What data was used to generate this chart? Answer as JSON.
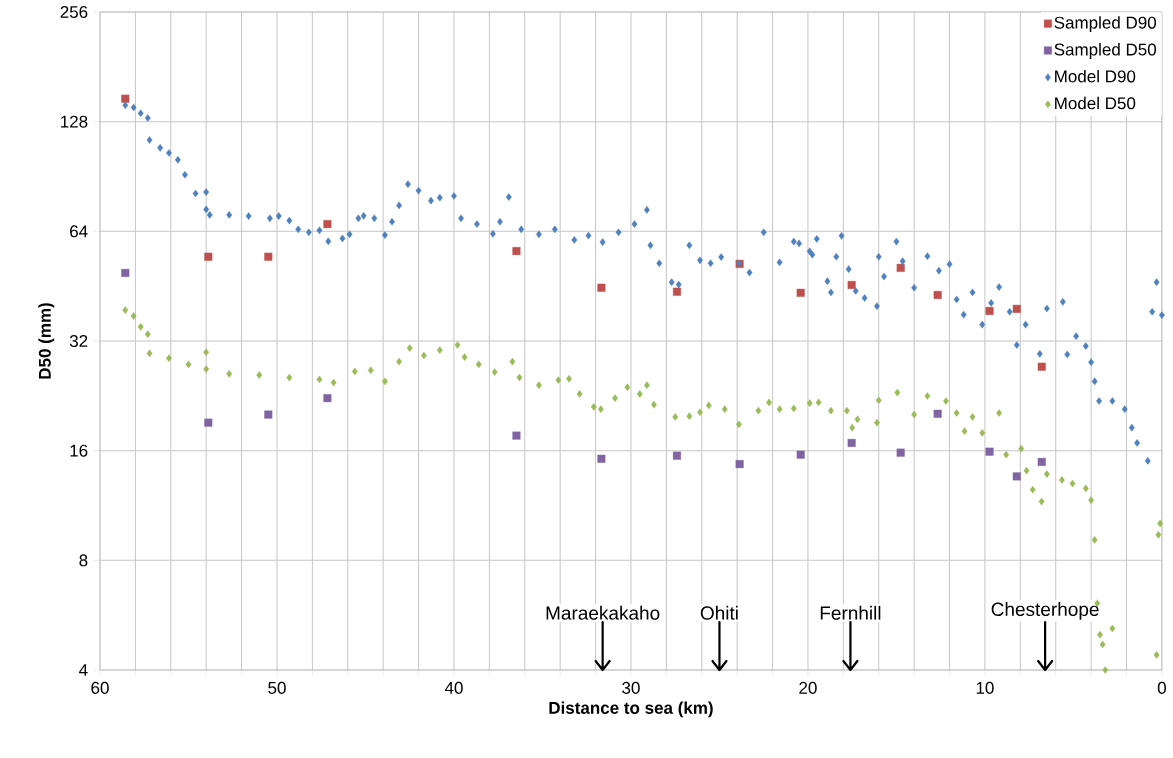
{
  "chart_data": {
    "type": "scatter",
    "xlabel": "Distance to sea (km)",
    "ylabel": "D50 (mm)",
    "log": "y",
    "grid": true,
    "legend": "top right",
    "xlim": [
      60,
      0
    ],
    "ylim": [
      4,
      256
    ],
    "xticks": [
      0,
      {
        "value": 2,
        "label": null
      },
      {
        "value": 4,
        "label": null
      },
      {
        "value": 6,
        "label": null
      },
      {
        "value": 8,
        "label": null
      },
      10,
      {
        "value": 12,
        "label": null
      },
      {
        "value": 14,
        "label": null
      },
      {
        "value": 16,
        "label": null
      },
      {
        "value": 18,
        "label": null
      },
      20,
      {
        "value": 22,
        "label": null
      },
      {
        "value": 24,
        "label": null
      },
      {
        "value": 26,
        "label": null
      },
      {
        "value": 28,
        "label": null
      },
      30,
      {
        "value": 32,
        "label": null
      },
      {
        "value": 34,
        "label": null
      },
      {
        "value": 36,
        "label": null
      },
      {
        "value": 38,
        "label": null
      },
      40,
      {
        "value": 42,
        "label": null
      },
      {
        "value": 44,
        "label": null
      },
      {
        "value": 46,
        "label": null
      },
      {
        "value": 48,
        "label": null
      },
      50,
      {
        "value": 52,
        "label": null
      },
      {
        "value": 54,
        "label": null
      },
      {
        "value": 56,
        "label": null
      },
      {
        "value": 58,
        "label": null
      },
      60
    ],
    "yticks": [
      4,
      8,
      16,
      32,
      64,
      128,
      256
    ],
    "ref_lines": [
      {
        "axis": "x",
        "value": 31.6,
        "label": "Maraekakaho"
      },
      {
        "axis": "x",
        "value": 25,
        "label": "Ohiti"
      },
      {
        "axis": "x",
        "value": 17.6,
        "label": "Fernhill"
      },
      {
        "axis": "x",
        "value": 6.6,
        "label": "Chesterhope"
      }
    ],
    "series": [
      {
        "name": "Sampled D90",
        "color": "#c0504d",
        "marker": "square",
        "x": [
          58.57,
          53.88,
          50.49,
          47.15,
          36.47,
          31.67,
          27.4,
          23.86,
          20.41,
          17.53,
          14.76,
          12.67,
          9.74,
          8.2,
          6.79
        ],
        "values": [
          148,
          54.5,
          54.5,
          67,
          56.5,
          44.8,
          43.7,
          52.1,
          43.4,
          45.6,
          50.8,
          42.8,
          38.7,
          39.2,
          27.2
        ]
      },
      {
        "name": "Sampled D50",
        "color": "#8064a2",
        "marker": "square",
        "x": [
          58.57,
          53.88,
          50.49,
          47.15,
          36.47,
          31.67,
          27.4,
          23.86,
          20.41,
          17.53,
          14.76,
          12.67,
          9.74,
          8.2,
          6.79
        ],
        "values": [
          49.2,
          19.1,
          20.1,
          22.3,
          17.6,
          15.2,
          15.5,
          14.7,
          15.6,
          16.8,
          15.8,
          20.2,
          15.9,
          13.6,
          14.9
        ]
      },
      {
        "name": "Model D90",
        "color": "#4f81bd",
        "marker": "diamond",
        "x": [
          58.57,
          58.1,
          57.7,
          57.3,
          57.2,
          56.6,
          56.1,
          55.6,
          55.2,
          54.6,
          54.0,
          54.0,
          53.8,
          52.7,
          51.6,
          50.4,
          49.9,
          49.3,
          48.8,
          48.2,
          47.6,
          47.1,
          46.3,
          45.9,
          45.4,
          45.1,
          44.5,
          43.9,
          43.5,
          43.1,
          42.6,
          42.0,
          41.3,
          40.8,
          40.0,
          39.6,
          38.7,
          37.8,
          37.4,
          36.9,
          36.2,
          35.2,
          34.3,
          33.2,
          32.4,
          31.6,
          30.7,
          29.8,
          29.1,
          28.9,
          28.4,
          27.7,
          27.3,
          26.7,
          26.1,
          25.5,
          24.9,
          23.9,
          23.3,
          22.5,
          21.6,
          20.8,
          20.5,
          19.9,
          19.75,
          19.5,
          18.9,
          18.7,
          18.4,
          18.1,
          17.7,
          17.3,
          16.8,
          16.1,
          16.0,
          15.7,
          15.0,
          14.65,
          14.0,
          13.25,
          12.6,
          12.0,
          11.6,
          11.2,
          10.7,
          10.15,
          9.65,
          9.2,
          8.6,
          8.2,
          7.7,
          6.9,
          6.5,
          5.6,
          5.35,
          4.85,
          4.3,
          4.0,
          3.8,
          3.55,
          2.8,
          2.1,
          1.7,
          1.4,
          0.8,
          0.55,
          0.3,
          0.0
        ],
        "values": [
          142,
          140,
          135,
          131,
          114,
          108.5,
          105,
          100.6,
          91.5,
          81.3,
          73.5,
          82,
          71,
          71,
          70.5,
          69.5,
          70.5,
          68.5,
          64.8,
          63.6,
          64.4,
          60.1,
          61.2,
          62.8,
          69.5,
          70.6,
          69.5,
          62.5,
          68,
          75.4,
          86.2,
          82.8,
          77.7,
          79.2,
          80,
          69.5,
          67,
          63,
          68,
          79.5,
          64.8,
          62.8,
          64.8,
          60.6,
          62.3,
          59.8,
          63.6,
          67,
          73.3,
          58.6,
          52.3,
          46.4,
          45.7,
          58.6,
          53.3,
          52.3,
          54.4,
          52.3,
          49.3,
          63.6,
          52.6,
          60,
          59.3,
          56.4,
          55.2,
          61,
          46.7,
          43.5,
          54.5,
          62.2,
          50.4,
          43.9,
          42,
          39.9,
          54.5,
          48.1,
          60,
          53,
          44.8,
          54.7,
          49.9,
          52,
          41.6,
          37.8,
          43.5,
          35.5,
          40.7,
          45,
          38.5,
          31.2,
          35.5,
          29.5,
          39.3,
          41,
          29.4,
          33,
          31,
          28,
          24.8,
          21.9,
          21.9,
          20.8,
          18.5,
          16.8,
          15,
          38.5,
          46.4,
          37.7
        ]
      },
      {
        "name": "Model D50",
        "color": "#9bbb59",
        "marker": "diamond",
        "x": [
          58.57,
          58.1,
          57.7,
          57.3,
          57.2,
          56.1,
          55.0,
          54.0,
          54.0,
          52.7,
          51.0,
          49.3,
          47.6,
          46.8,
          45.6,
          44.7,
          43.9,
          43.1,
          42.5,
          41.7,
          40.8,
          39.8,
          39.4,
          38.6,
          37.7,
          36.7,
          36.3,
          35.2,
          34.1,
          33.5,
          32.9,
          32.1,
          31.7,
          30.9,
          30.2,
          29.5,
          29.1,
          28.7,
          27.5,
          26.7,
          26.1,
          25.6,
          24.7,
          23.9,
          22.8,
          22.2,
          21.6,
          20.8,
          19.9,
          19.4,
          18.7,
          17.8,
          17.5,
          17.2,
          16.1,
          16.0,
          14.95,
          14.0,
          13.25,
          12.2,
          11.6,
          11.15,
          10.7,
          10.15,
          9.2,
          8.8,
          7.95,
          7.65,
          7.3,
          6.8,
          6.5,
          5.65,
          5.05,
          4.3,
          4.0,
          3.8,
          3.65,
          3.5,
          3.35,
          2.8,
          3.2,
          0.1,
          0.2,
          0.3
        ],
        "values": [
          38.9,
          37.5,
          35,
          33.4,
          29.6,
          28.7,
          27.6,
          26.8,
          29.8,
          26,
          25.8,
          25.4,
          25.1,
          24.6,
          26.4,
          26.6,
          24.8,
          28.1,
          30.6,
          29.2,
          30.2,
          31.2,
          28.9,
          27.6,
          26.3,
          28.1,
          25.4,
          24.2,
          25,
          25.2,
          22.9,
          21.1,
          20.8,
          22.3,
          23.9,
          22.9,
          24.2,
          21.4,
          19.8,
          19.9,
          20.4,
          21.3,
          20.8,
          18.9,
          20.6,
          21.7,
          20.8,
          20.9,
          21.6,
          21.7,
          20.6,
          20.6,
          18.5,
          19.5,
          19.1,
          22,
          23.1,
          20.1,
          22.6,
          21.9,
          20.3,
          18.1,
          19.8,
          17.9,
          20.3,
          15.6,
          16.2,
          14.1,
          12.5,
          11.6,
          13.8,
          13.3,
          13,
          12.6,
          11.7,
          9.1,
          6.1,
          5.0,
          4.7,
          5.2,
          4.0,
          10.1,
          9.4,
          4.4
        ]
      }
    ]
  }
}
